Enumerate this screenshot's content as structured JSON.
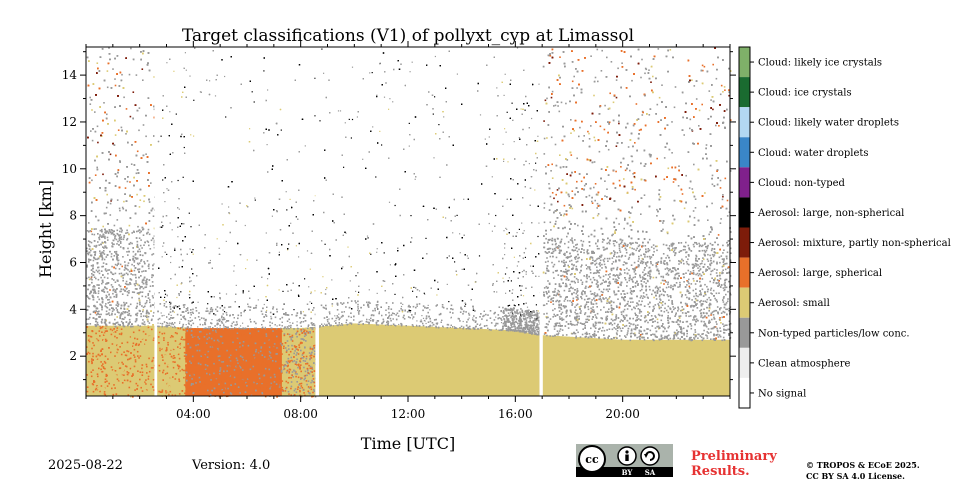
{
  "chart_data": {
    "type": "heatmap",
    "title": "Target classifications (V1) of pollyxt_cyp at Limassol",
    "xlabel": "Time [UTC]",
    "ylabel": "Height [km]",
    "xlim_hours": [
      0,
      24
    ],
    "ylim_km": [
      0.3,
      15.2
    ],
    "x_ticks": [
      {
        "value": 4,
        "label": "04:00"
      },
      {
        "value": 8,
        "label": "08:00"
      },
      {
        "value": 12,
        "label": "12:00"
      },
      {
        "value": 16,
        "label": "16:00"
      },
      {
        "value": 20,
        "label": "20:00"
      }
    ],
    "y_ticks": [
      2,
      4,
      6,
      8,
      10,
      12,
      14
    ],
    "colorbar": [
      {
        "label": "Cloud: likely ice crystals",
        "color": "#7fb069"
      },
      {
        "label": "Cloud: ice crystals",
        "color": "#1a6b30"
      },
      {
        "label": "Cloud: likely water droplets",
        "color": "#b3d8f2"
      },
      {
        "label": "Cloud: water droplets",
        "color": "#3a86c8"
      },
      {
        "label": "Cloud: non-typed",
        "color": "#80208c"
      },
      {
        "label": "Aerosol: large, non-spherical",
        "color": "#000000"
      },
      {
        "label": "Aerosol: mixture, partly non-spherical",
        "color": "#7d1c0a"
      },
      {
        "label": "Aerosol: large, spherical",
        "color": "#e8702a"
      },
      {
        "label": "Aerosol: small",
        "color": "#dcca74"
      },
      {
        "label": "Non-typed particles/low conc.",
        "color": "#999999"
      },
      {
        "label": "Clean atmosphere",
        "color": "#eeeeee"
      },
      {
        "label": "No signal",
        "color": "#ffffff"
      }
    ],
    "data_gaps_hours": [
      [
        2.55,
        2.65
      ],
      [
        8.55,
        8.68
      ],
      [
        16.9,
        17.02
      ]
    ],
    "aerosol_layer_top_km": [
      {
        "t": 0,
        "h": 3.3
      },
      {
        "t": 2.6,
        "h": 3.3
      },
      {
        "t": 4,
        "h": 3.2
      },
      {
        "t": 6,
        "h": 3.2
      },
      {
        "t": 8,
        "h": 3.2
      },
      {
        "t": 10,
        "h": 3.4
      },
      {
        "t": 12,
        "h": 3.3
      },
      {
        "t": 14,
        "h": 3.2
      },
      {
        "t": 16,
        "h": 3.1
      },
      {
        "t": 17,
        "h": 2.9
      },
      {
        "t": 20,
        "h": 2.7
      },
      {
        "t": 24,
        "h": 2.7
      }
    ],
    "dominant_class_by_period": [
      {
        "from": 0,
        "to": 2.55,
        "class": "Aerosol: small",
        "mixed_with": "Aerosol: large, spherical"
      },
      {
        "from": 2.65,
        "to": 3.7,
        "class": "Aerosol: small"
      },
      {
        "from": 3.7,
        "to": 7.3,
        "class": "Aerosol: large, spherical"
      },
      {
        "from": 7.3,
        "to": 8.55,
        "class": "Aerosol: small"
      },
      {
        "from": 8.68,
        "to": 16.9,
        "class": "Aerosol: small"
      },
      {
        "from": 17.02,
        "to": 24,
        "class": "Aerosol: small"
      }
    ]
  },
  "footer": {
    "date": "2025-08-22",
    "version": "Version: 4.0",
    "preliminary_line1": "Preliminary",
    "preliminary_line2": "Results.",
    "copyright_line1": "© TROPOS & ECoE 2025.",
    "copyright_line2": "CC BY SA 4.0 License."
  },
  "badge": {
    "cc": "cc",
    "by": "BY",
    "sa": "SA"
  }
}
